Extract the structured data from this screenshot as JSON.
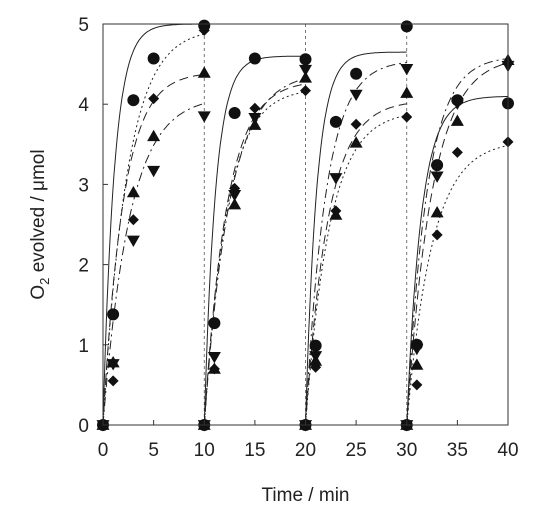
{
  "chart_data": {
    "type": "scatter",
    "title": "",
    "xlabel": "Time / min",
    "ylabel_parts": [
      "O",
      "2",
      " evolved / μmol"
    ],
    "xlim": [
      0,
      40
    ],
    "ylim": [
      0,
      5
    ],
    "xticks": [
      0,
      5,
      10,
      15,
      20,
      25,
      30,
      35,
      40
    ],
    "yticks": [
      0,
      1,
      2,
      3,
      4,
      5
    ],
    "reference_lines_x": [
      10,
      20,
      30
    ],
    "series": [
      {
        "marker": "circle",
        "line_style": "solid",
        "points": [
          [
            0,
            0
          ],
          [
            1,
            1.38
          ],
          [
            3,
            4.05
          ],
          [
            5,
            4.57
          ],
          [
            10,
            4.98
          ],
          [
            10,
            0
          ],
          [
            11,
            1.27
          ],
          [
            13,
            3.89
          ],
          [
            15,
            4.57
          ],
          [
            20,
            4.56
          ],
          [
            20,
            0
          ],
          [
            21,
            0.99
          ],
          [
            23,
            3.78
          ],
          [
            25,
            4.38
          ],
          [
            30,
            4.97
          ],
          [
            30,
            0
          ],
          [
            31,
            1.0
          ],
          [
            33,
            3.24
          ],
          [
            35,
            4.05
          ],
          [
            40,
            4.01
          ]
        ],
        "fit": [
          [
            0,
            0,
            5.0,
            0.9
          ],
          [
            10,
            0,
            4.6,
            0.9
          ],
          [
            20,
            0,
            4.65,
            0.9
          ],
          [
            30,
            0,
            4.1,
            0.7
          ]
        ]
      },
      {
        "marker": "diamond",
        "line_style": "dotted",
        "points": [
          [
            0,
            0
          ],
          [
            1,
            0.55
          ],
          [
            3,
            2.56
          ],
          [
            5,
            4.07
          ],
          [
            10,
            4.92
          ],
          [
            10,
            0
          ],
          [
            11,
            0.7
          ],
          [
            13,
            2.95
          ],
          [
            15,
            3.95
          ],
          [
            20,
            4.17
          ],
          [
            20,
            0
          ],
          [
            21,
            0.72
          ],
          [
            23,
            2.67
          ],
          [
            25,
            3.75
          ],
          [
            30,
            3.84
          ],
          [
            30,
            0
          ],
          [
            31,
            0.5
          ],
          [
            33,
            2.37
          ],
          [
            35,
            3.4
          ],
          [
            40,
            3.53
          ]
        ],
        "fit": [
          [
            0,
            0,
            4.95,
            0.42
          ],
          [
            10,
            0,
            4.2,
            0.45
          ],
          [
            20,
            0,
            3.92,
            0.42
          ],
          [
            30,
            0,
            3.55,
            0.4
          ]
        ]
      },
      {
        "marker": "triangle-up",
        "line_style": "dashed",
        "points": [
          [
            0,
            0
          ],
          [
            1,
            0.78
          ],
          [
            3,
            2.9
          ],
          [
            5,
            3.6
          ],
          [
            10,
            4.39
          ],
          [
            10,
            0
          ],
          [
            11,
            0.7
          ],
          [
            13,
            2.75
          ],
          [
            15,
            3.74
          ],
          [
            20,
            4.33
          ],
          [
            20,
            0
          ],
          [
            21,
            0.8
          ],
          [
            23,
            2.62
          ],
          [
            25,
            3.52
          ],
          [
            30,
            4.14
          ],
          [
            30,
            0
          ],
          [
            31,
            0.75
          ],
          [
            33,
            2.65
          ],
          [
            35,
            3.79
          ],
          [
            40,
            4.55
          ]
        ],
        "fit": [
          [
            0,
            0,
            4.4,
            0.5
          ],
          [
            10,
            0,
            4.3,
            0.45
          ],
          [
            20,
            0,
            4.05,
            0.45
          ],
          [
            30,
            0,
            4.6,
            0.4
          ]
        ]
      },
      {
        "marker": "triangle-down",
        "line_style": "dashdot",
        "points": [
          [
            0,
            0
          ],
          [
            1,
            0.76
          ],
          [
            3,
            2.3
          ],
          [
            5,
            3.17
          ],
          [
            10,
            3.85
          ],
          [
            10,
            0
          ],
          [
            11,
            0.85
          ],
          [
            13,
            2.87
          ],
          [
            15,
            3.83
          ],
          [
            20,
            4.43
          ],
          [
            20,
            0
          ],
          [
            21,
            0.86
          ],
          [
            23,
            3.08
          ],
          [
            25,
            4.12
          ],
          [
            30,
            4.44
          ],
          [
            30,
            0
          ],
          [
            31,
            0.95
          ],
          [
            33,
            3.1
          ],
          [
            35,
            4.01
          ],
          [
            40,
            4.48
          ]
        ],
        "fit": [
          [
            0,
            0,
            4.1,
            0.38
          ],
          [
            10,
            0,
            4.4,
            0.4
          ],
          [
            20,
            0,
            4.55,
            0.5
          ],
          [
            30,
            0,
            4.6,
            0.5
          ]
        ]
      }
    ]
  }
}
